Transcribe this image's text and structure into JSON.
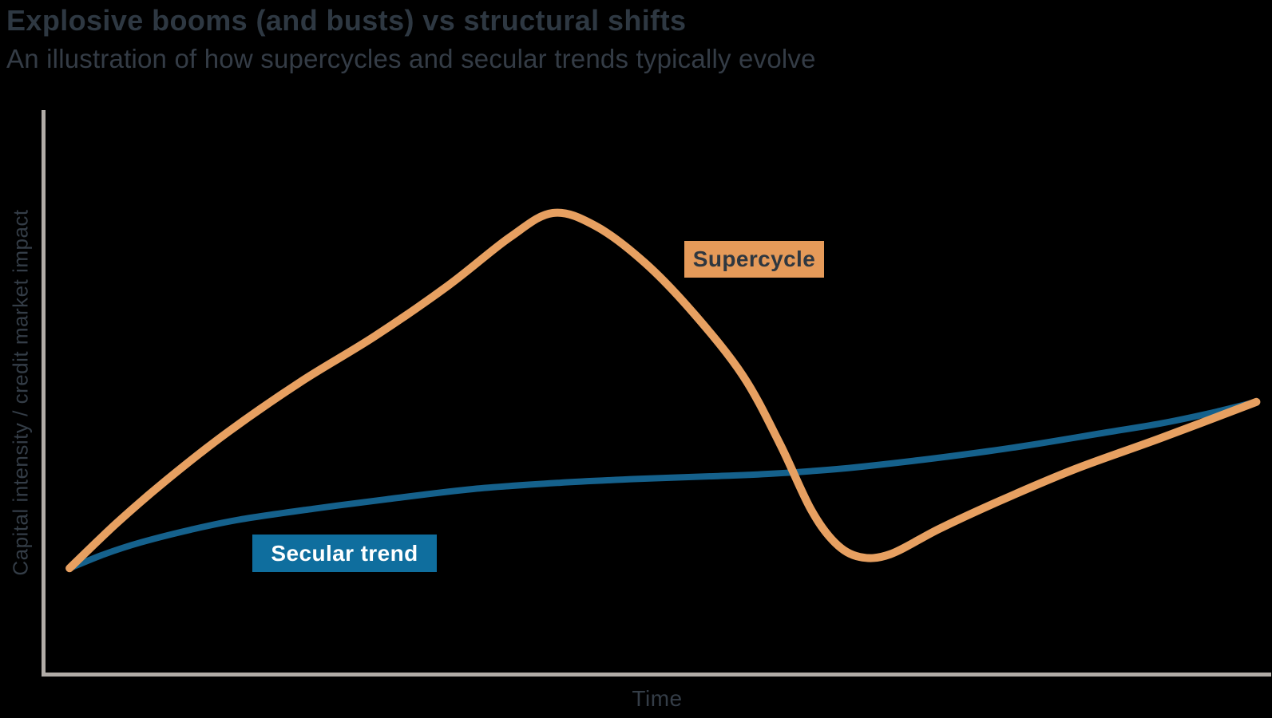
{
  "theme": {
    "background": "#000000",
    "title_color": "#2E3842",
    "subtitle_color": "#343C46",
    "axis_color": "#B1ACA7",
    "axis_label_color": "#343D47"
  },
  "chart_data": {
    "type": "line",
    "title": "Explosive booms (and busts) vs structural shifts",
    "subtitle": "An illustration of how supercycles and secular trends typically evolve",
    "xlabel": "Time",
    "ylabel": "Capital intensity / credit market impact",
    "grid": false,
    "legend": "inline-label-boxes",
    "axes_note": "Conceptual illustration: no numeric ticks; both axes unlabeled ranges. Points below are normalized 0-100 (x = time, y = capital intensity / credit market impact).",
    "xlim": [
      0,
      100
    ],
    "ylim": [
      0,
      100
    ],
    "series": [
      {
        "name": "Supercycle",
        "color": "#E7A061",
        "label_box": {
          "bg": "#E59A59",
          "text_color": "#2E3740"
        },
        "shape": "steep boom rising to a peak, sharp bust to a trough below the secular trend, then gradual recovery converging with the secular trend at far right",
        "points": [
          [
            2.15,
            19
          ],
          [
            6,
            27
          ],
          [
            10,
            34.5
          ],
          [
            15,
            43
          ],
          [
            21,
            52
          ],
          [
            27,
            60
          ],
          [
            33,
            69
          ],
          [
            38,
            77.5
          ],
          [
            41.5,
            81.8
          ],
          [
            45,
            79.5
          ],
          [
            49,
            73
          ],
          [
            53,
            64
          ],
          [
            57,
            53
          ],
          [
            60,
            41
          ],
          [
            62.5,
            29.5
          ],
          [
            64.5,
            23.5
          ],
          [
            66.5,
            21
          ],
          [
            69,
            21.5
          ],
          [
            73,
            26
          ],
          [
            78,
            31
          ],
          [
            84,
            36.5
          ],
          [
            91,
            42
          ],
          [
            98.8,
            48.4
          ]
        ]
      },
      {
        "name": "Secular trend",
        "color": "#15618C",
        "label_box": {
          "bg": "#0F6E9E",
          "text_color": "#FFFFFF"
        },
        "shape": "starts at same origin, rises quickly then flattens into a slow steady climb, steepening slightly toward the right edge",
        "points": [
          [
            2.15,
            19
          ],
          [
            5,
            21.5
          ],
          [
            8,
            23.6
          ],
          [
            12,
            25.8
          ],
          [
            16,
            27.6
          ],
          [
            22,
            29.5
          ],
          [
            28,
            31.2
          ],
          [
            35,
            33
          ],
          [
            42,
            34.1
          ],
          [
            48.5,
            34.8
          ],
          [
            55,
            35.3
          ],
          [
            59.2,
            35.7
          ],
          [
            65,
            36.6
          ],
          [
            71.3,
            38.1
          ],
          [
            77,
            39.7
          ],
          [
            81,
            41
          ],
          [
            86,
            42.8
          ],
          [
            91,
            44.6
          ],
          [
            95,
            46.4
          ],
          [
            98.8,
            48.4
          ]
        ]
      }
    ]
  }
}
